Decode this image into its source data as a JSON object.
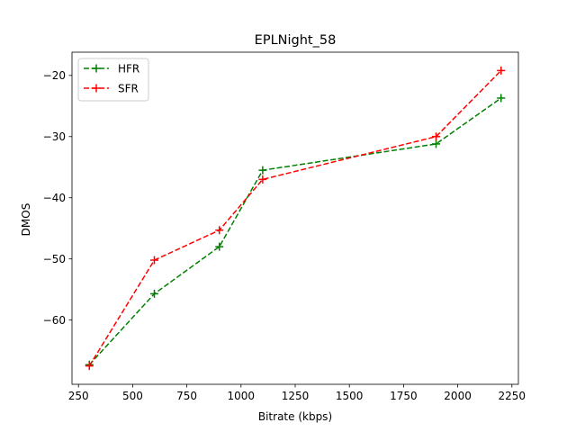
{
  "chart_data": {
    "type": "line",
    "title": "EPLNight_58",
    "xlabel": "Bitrate (kbps)",
    "ylabel": "DMOS",
    "xlim": [
      220,
      2280
    ],
    "ylim": [
      -70.5,
      -16.2
    ],
    "xticks": [
      250,
      500,
      750,
      1000,
      1250,
      1500,
      1750,
      2000,
      2250
    ],
    "yticks": [
      -60,
      -50,
      -40,
      -30,
      -20
    ],
    "xtick_labels": [
      "250",
      "500",
      "750",
      "1000",
      "1250",
      "1500",
      "1750",
      "2000",
      "2250"
    ],
    "ytick_labels": [
      "−60",
      "−50",
      "−40",
      "−30",
      "−20"
    ],
    "grid": false,
    "legend_position": "upper-left",
    "x": [
      300,
      600,
      900,
      1100,
      1900,
      2200
    ],
    "series": [
      {
        "name": "HFR",
        "color": "#008000",
        "linestyle": "dashed",
        "marker": "+",
        "values": [
          -67.3,
          -55.7,
          -48.0,
          -35.5,
          -31.2,
          -23.7
        ]
      },
      {
        "name": "SFR",
        "color": "#ff0000",
        "linestyle": "dashed",
        "marker": "+",
        "values": [
          -67.5,
          -50.2,
          -45.3,
          -37.0,
          -30.0,
          -19.2
        ]
      }
    ]
  }
}
